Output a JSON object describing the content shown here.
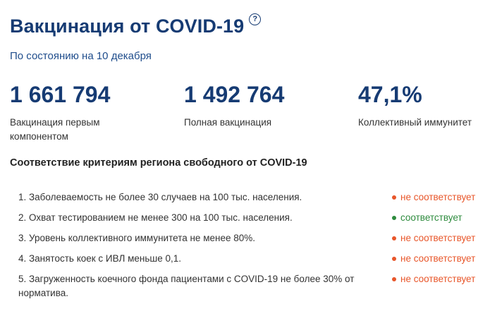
{
  "header": {
    "title": "Вакцинация от COVID-19",
    "help_icon": "?",
    "subtitle": "По состоянию на 10 декабря"
  },
  "stats": [
    {
      "value": "1 661 794",
      "label": "Вакцинация первым компонентом"
    },
    {
      "value": "1 492 764",
      "label": "Полная вакцинация"
    },
    {
      "value": "47,1%",
      "label": "Коллективный иммунитет"
    }
  ],
  "criteria": {
    "title": "Соответствие критериям региона свободного от COVID-19",
    "items": [
      {
        "text": "1. Заболеваемость не более 30 случаев на 100 тыс. населения.",
        "status": "не соответствует",
        "ok": false
      },
      {
        "text": "2. Охват тестированием не менее 300 на 100 тыс. населения.",
        "status": "соответствует",
        "ok": true
      },
      {
        "text": "3. Уровень коллективного иммунитета не менее 80%.",
        "status": "не соответствует",
        "ok": false
      },
      {
        "text": "4. Занятость коек с ИВЛ меньше 0,1.",
        "status": "не соответствует",
        "ok": false
      },
      {
        "text": "5. Загруженность коечного фонда пациентами с COVID-19 не более 30% от норматива.",
        "status": "не соответствует",
        "ok": false
      }
    ]
  },
  "colors": {
    "primary": "#163b73",
    "bad": "#e8562a",
    "good": "#2e8b3e"
  }
}
